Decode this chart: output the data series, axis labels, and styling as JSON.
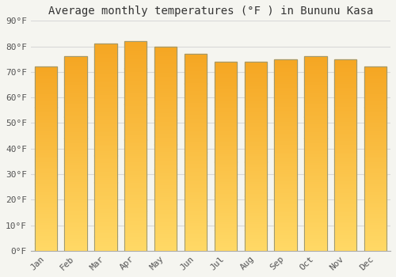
{
  "title": "Average monthly temperatures (°F ) in Bununu Kasa",
  "months": [
    "Jan",
    "Feb",
    "Mar",
    "Apr",
    "May",
    "Jun",
    "Jul",
    "Aug",
    "Sep",
    "Oct",
    "Nov",
    "Dec"
  ],
  "values": [
    72,
    76,
    81,
    82,
    80,
    77,
    74,
    74,
    75,
    76,
    75,
    72
  ],
  "bar_color_top": "#F5A623",
  "bar_color_bottom": "#FFD966",
  "ylim": [
    0,
    90
  ],
  "yticks": [
    0,
    10,
    20,
    30,
    40,
    50,
    60,
    70,
    80,
    90
  ],
  "ytick_labels": [
    "0°F",
    "10°F",
    "20°F",
    "30°F",
    "40°F",
    "50°F",
    "60°F",
    "70°F",
    "80°F",
    "90°F"
  ],
  "background_color": "#F5F5F0",
  "grid_color": "#D8D8D8",
  "title_fontsize": 10,
  "tick_fontsize": 8,
  "bar_edge_color": "#999977",
  "bar_width": 0.75,
  "gradient_steps": 100
}
